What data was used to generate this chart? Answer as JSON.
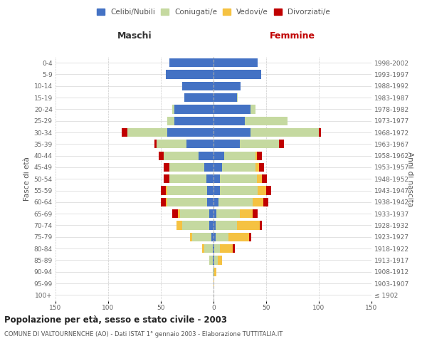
{
  "age_groups": [
    "100+",
    "95-99",
    "90-94",
    "85-89",
    "80-84",
    "75-79",
    "70-74",
    "65-69",
    "60-64",
    "55-59",
    "50-54",
    "45-49",
    "40-44",
    "35-39",
    "30-34",
    "25-29",
    "20-24",
    "15-19",
    "10-14",
    "5-9",
    "0-4"
  ],
  "birth_years": [
    "≤ 1902",
    "1903-1907",
    "1908-1912",
    "1913-1917",
    "1918-1922",
    "1923-1927",
    "1928-1932",
    "1933-1937",
    "1938-1942",
    "1943-1947",
    "1948-1952",
    "1953-1957",
    "1958-1962",
    "1963-1967",
    "1968-1972",
    "1973-1977",
    "1978-1982",
    "1983-1987",
    "1988-1992",
    "1993-1997",
    "1998-2002"
  ],
  "male": {
    "celibe": [
      0,
      0,
      0,
      1,
      1,
      2,
      4,
      4,
      6,
      6,
      7,
      9,
      14,
      26,
      44,
      37,
      37,
      28,
      30,
      45,
      42
    ],
    "coniugato": [
      0,
      0,
      1,
      3,
      8,
      18,
      26,
      28,
      38,
      38,
      35,
      33,
      33,
      28,
      38,
      7,
      2,
      0,
      0,
      0,
      0
    ],
    "vedovo": [
      0,
      0,
      0,
      0,
      2,
      2,
      5,
      2,
      1,
      1,
      0,
      0,
      0,
      0,
      0,
      0,
      0,
      0,
      0,
      0,
      0
    ],
    "divorziato": [
      0,
      0,
      0,
      0,
      0,
      0,
      0,
      5,
      5,
      5,
      5,
      5,
      5,
      2,
      5,
      0,
      0,
      0,
      0,
      0,
      0
    ]
  },
  "female": {
    "nubile": [
      0,
      0,
      0,
      1,
      1,
      2,
      2,
      3,
      5,
      6,
      6,
      8,
      10,
      25,
      35,
      30,
      35,
      22,
      26,
      45,
      42
    ],
    "coniugata": [
      0,
      0,
      1,
      3,
      5,
      12,
      20,
      22,
      32,
      36,
      35,
      32,
      30,
      37,
      65,
      40,
      5,
      1,
      0,
      0,
      0
    ],
    "vedova": [
      0,
      1,
      2,
      4,
      12,
      20,
      22,
      12,
      10,
      8,
      5,
      3,
      1,
      0,
      0,
      0,
      0,
      0,
      0,
      0,
      0
    ],
    "divorziata": [
      0,
      0,
      0,
      0,
      2,
      2,
      2,
      5,
      5,
      5,
      5,
      5,
      5,
      5,
      2,
      0,
      0,
      0,
      0,
      0,
      0
    ]
  },
  "colors": {
    "celibe": "#4472c4",
    "coniugato": "#c5d9a0",
    "vedovo": "#f5c242",
    "divorziato": "#c00000"
  },
  "legend_labels": [
    "Celibi/Nubili",
    "Coniugati/e",
    "Vedovi/e",
    "Divorziati/e"
  ],
  "xlim": 150,
  "title": "Popolazione per età, sesso e stato civile - 2003",
  "subtitle": "COMUNE DI VALTOURNENCHE (AO) - Dati ISTAT 1° gennaio 2003 - Elaborazione TUTTITALIA.IT",
  "ylabel_left": "Fasce di età",
  "ylabel_right": "Anni di nascita",
  "xlabel_left": "Maschi",
  "xlabel_right": "Femmine",
  "bg_color": "#ffffff",
  "grid_color": "#cccccc",
  "bar_height": 0.75
}
